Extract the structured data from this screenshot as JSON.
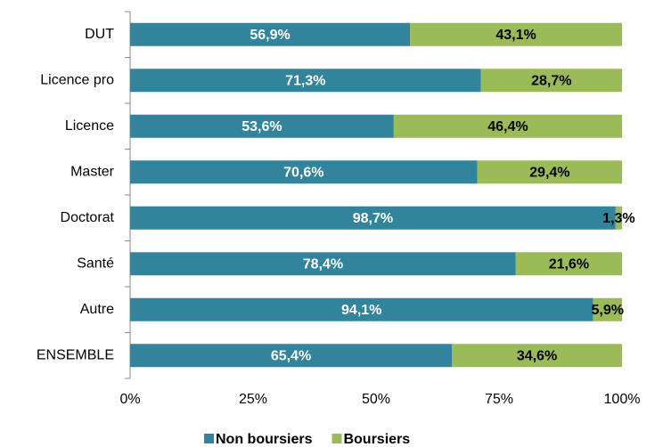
{
  "chart_data": {
    "type": "stacked-bar-horizontal",
    "categories": [
      "DUT",
      "Licence pro",
      "Licence",
      "Master",
      "Doctorat",
      "Santé",
      "Autre",
      "ENSEMBLE"
    ],
    "series": [
      {
        "name": "Non boursiers",
        "color": "#31849b",
        "values": [
          56.9,
          71.3,
          53.6,
          70.6,
          98.7,
          78.4,
          94.1,
          65.4
        ],
        "value_labels": [
          "56,9%",
          "71,3%",
          "53,6%",
          "70,6%",
          "98,7%",
          "78,4%",
          "94,1%",
          "65,4%"
        ]
      },
      {
        "name": "Boursiers",
        "color": "#9bbb59",
        "values": [
          43.1,
          28.7,
          46.4,
          29.4,
          1.3,
          21.6,
          5.9,
          34.6
        ],
        "value_labels": [
          "43,1%",
          "28,7%",
          "46,4%",
          "29,4%",
          "1,3%",
          "21,6%",
          "5,9%",
          "34,6%"
        ]
      }
    ],
    "xlim": [
      0,
      100
    ],
    "xticks": [
      {
        "value": 0,
        "label": "0%"
      },
      {
        "value": 25,
        "label": "25%"
      },
      {
        "value": 50,
        "label": "50%"
      },
      {
        "value": 75,
        "label": "75%"
      },
      {
        "value": 100,
        "label": "100%"
      }
    ],
    "legend": "bottom"
  }
}
